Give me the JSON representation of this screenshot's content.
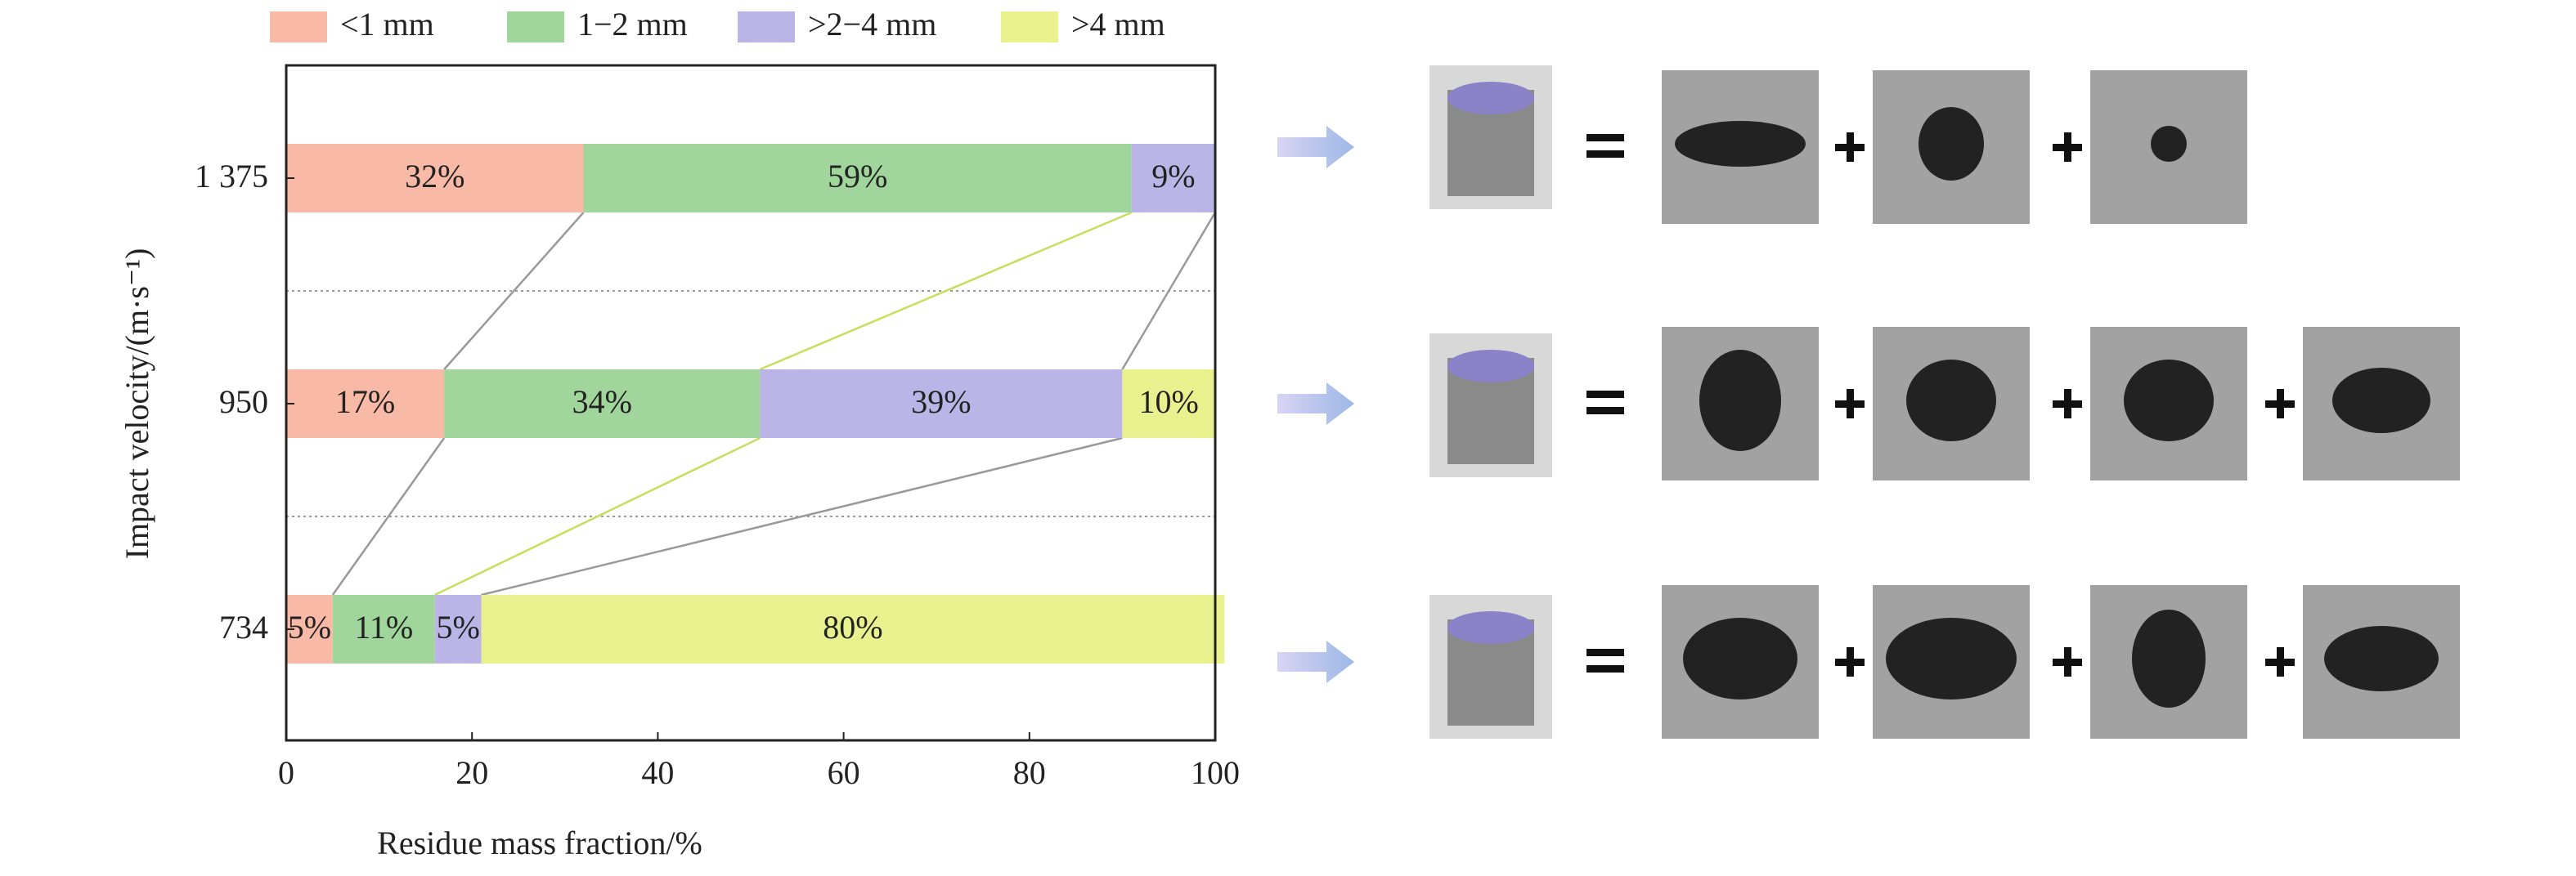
{
  "chart_data": {
    "type": "stacked-barh",
    "xlabel": "Residue mass fraction/%",
    "ylabel": "Impact velocity/(m·s⁻¹)",
    "categories": [
      "1 375",
      "950",
      "734"
    ],
    "series": [
      {
        "name": "<1 mm",
        "color": "#f8b9a6",
        "values": [
          32,
          17,
          5
        ],
        "value_labels": [
          "32%",
          "17%",
          "5%"
        ]
      },
      {
        "name": "1−2 mm",
        "color": "#a0d59b",
        "values": [
          59,
          34,
          11
        ],
        "value_labels": [
          "59%",
          "34%",
          "11%"
        ]
      },
      {
        "name": ">2−4 mm",
        "color": "#bbb5e7",
        "values": [
          9,
          39,
          5
        ],
        "value_labels": [
          "9%",
          "39%",
          "5%"
        ]
      },
      {
        "name": ">4 mm",
        "color": "#e9f18f",
        "values": [
          null,
          10,
          80
        ],
        "value_labels": [
          null,
          "10%",
          "80%"
        ]
      }
    ],
    "xlim": [
      0,
      100
    ],
    "xticks": [
      0,
      20,
      40,
      60,
      80,
      100
    ],
    "legend": "top"
  }
}
